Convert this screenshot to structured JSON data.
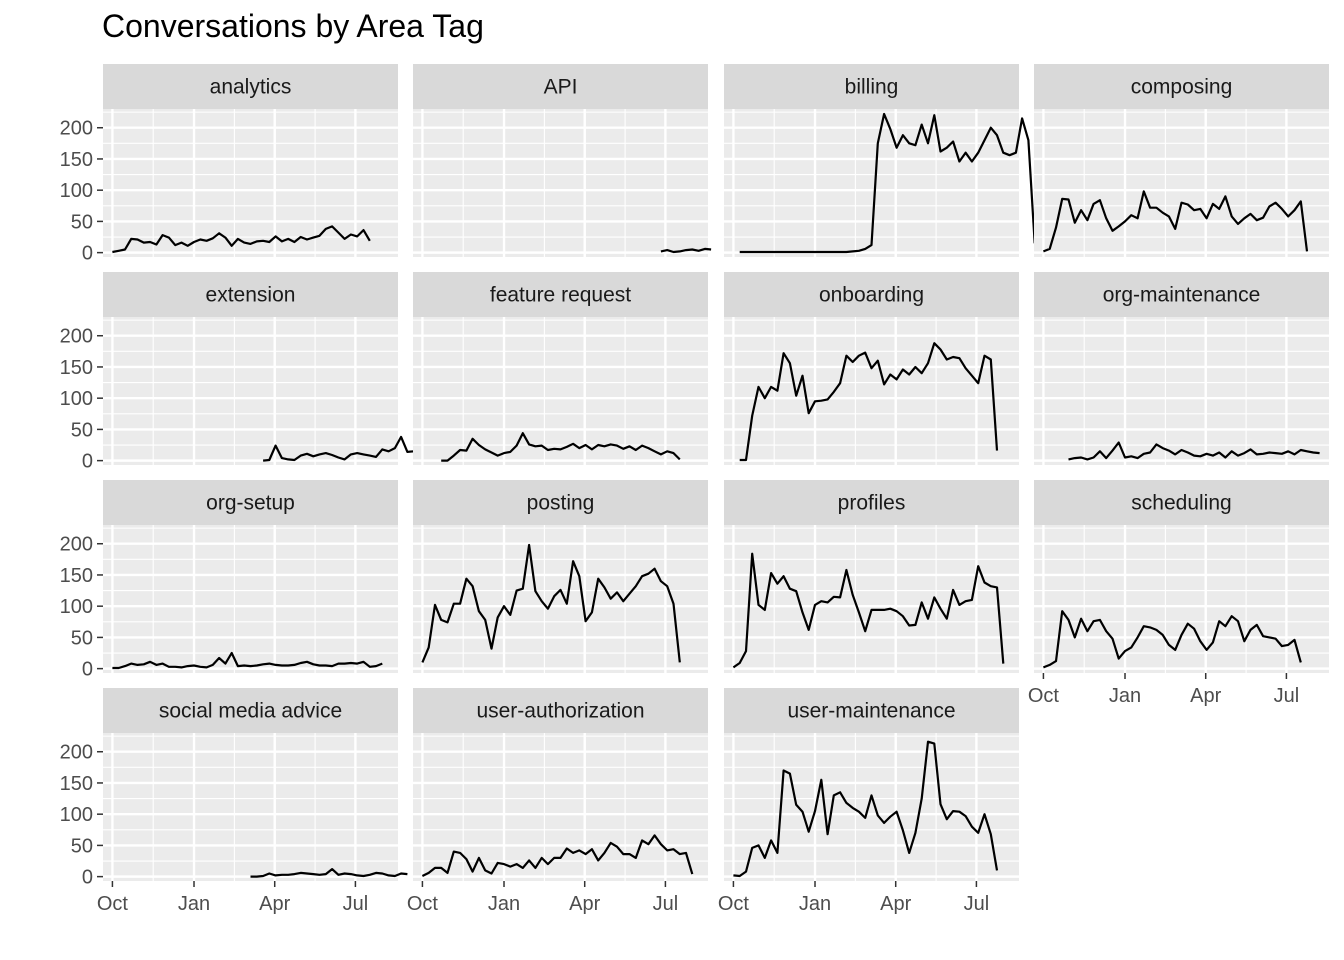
{
  "chart_data": {
    "type": "line",
    "title": "Conversations by Area Tag",
    "xlabel": "",
    "ylabel": "",
    "x_ticks": [
      "Oct",
      "Jan",
      "Apr",
      "Jul"
    ],
    "y_ticks": [
      0,
      50,
      100,
      150,
      200
    ],
    "ylim": [
      -7,
      230
    ],
    "xlim_weeks": [
      -1.5,
      45.5
    ],
    "x_unit": "weeks (weekly counts, Oct through Jul)",
    "grid": true,
    "facets": [
      {
        "name": "analytics",
        "x_start_week": 0,
        "values": [
          1,
          3,
          5,
          22,
          21,
          16,
          17,
          13,
          28,
          24,
          12,
          16,
          11,
          17,
          21,
          19,
          23,
          31,
          24,
          11,
          22,
          16,
          14,
          18,
          19,
          17,
          26,
          18,
          22,
          17,
          25,
          21,
          24,
          27,
          38,
          42,
          32,
          22,
          29,
          26,
          36,
          19
        ]
      },
      {
        "name": "API",
        "x_start_week": 38,
        "values": [
          2,
          4,
          1,
          2,
          4,
          5,
          3,
          6,
          5
        ]
      },
      {
        "name": "billing",
        "x_start_week": 1,
        "values": [
          1,
          1,
          1,
          1,
          1,
          1,
          1,
          1,
          1,
          1,
          1,
          1,
          1,
          1,
          1,
          1,
          1,
          1,
          2,
          3,
          6,
          12,
          175,
          222,
          198,
          168,
          188,
          175,
          172,
          205,
          175,
          220,
          162,
          168,
          178,
          146,
          160,
          146,
          160,
          180,
          200,
          188,
          160,
          156,
          160,
          215,
          180,
          15
        ]
      },
      {
        "name": "composing",
        "x_start_week": 0,
        "values": [
          2,
          6,
          40,
          86,
          85,
          48,
          68,
          52,
          78,
          84,
          55,
          35,
          42,
          50,
          60,
          55,
          98,
          72,
          72,
          64,
          58,
          38,
          80,
          77,
          68,
          70,
          55,
          78,
          70,
          90,
          58,
          46,
          55,
          62,
          52,
          56,
          74,
          80,
          70,
          58,
          68,
          82,
          2
        ]
      },
      {
        "name": "extension",
        "x_start_week": 24,
        "values": [
          0,
          1,
          24,
          4,
          2,
          1,
          8,
          11,
          7,
          10,
          12,
          9,
          5,
          2,
          10,
          12,
          10,
          8,
          6,
          18,
          15,
          20,
          38,
          14,
          15,
          4,
          12,
          12
        ]
      },
      {
        "name": "feature request",
        "x_start_week": 3,
        "values": [
          0,
          0,
          8,
          17,
          16,
          35,
          25,
          18,
          13,
          8,
          12,
          14,
          24,
          44,
          26,
          23,
          24,
          17,
          19,
          18,
          22,
          27,
          20,
          25,
          18,
          25,
          23,
          26,
          24,
          19,
          23,
          17,
          24,
          20,
          15,
          10,
          15,
          12,
          2
        ]
      },
      {
        "name": "onboarding",
        "x_start_week": 1,
        "values": [
          1,
          1,
          72,
          118,
          100,
          118,
          112,
          172,
          156,
          104,
          136,
          76,
          95,
          96,
          98,
          110,
          124,
          168,
          158,
          168,
          173,
          148,
          160,
          122,
          138,
          130,
          146,
          138,
          150,
          140,
          156,
          188,
          178,
          162,
          166,
          164,
          148,
          136,
          124,
          168,
          162,
          16
        ]
      },
      {
        "name": "org-maintenance",
        "x_start_week": 4,
        "values": [
          2,
          4,
          5,
          2,
          5,
          15,
          4,
          16,
          29,
          5,
          7,
          4,
          11,
          13,
          26,
          20,
          16,
          10,
          17,
          13,
          8,
          7,
          11,
          8,
          13,
          5,
          15,
          8,
          12,
          18,
          10,
          11,
          13,
          12,
          11,
          15,
          10,
          17,
          15,
          13,
          12
        ]
      },
      {
        "name": "org-setup",
        "x_start_week": 0,
        "values": [
          1,
          1,
          4,
          8,
          6,
          7,
          11,
          6,
          8,
          3,
          3,
          2,
          4,
          5,
          3,
          2,
          6,
          17,
          8,
          25,
          4,
          5,
          4,
          5,
          7,
          8,
          6,
          5,
          5,
          6,
          9,
          11,
          7,
          5,
          5,
          4,
          8,
          8,
          9,
          8,
          11,
          3,
          4,
          8
        ]
      },
      {
        "name": "posting",
        "x_start_week": 0,
        "values": [
          10,
          34,
          102,
          78,
          74,
          104,
          104,
          144,
          132,
          92,
          78,
          32,
          82,
          100,
          86,
          125,
          128,
          198,
          124,
          108,
          96,
          116,
          126,
          104,
          172,
          148,
          76,
          90,
          144,
          130,
          112,
          122,
          108,
          120,
          132,
          148,
          152,
          160,
          140,
          132,
          104,
          10
        ]
      },
      {
        "name": "profiles",
        "x_start_week": 0,
        "values": [
          2,
          9,
          28,
          184,
          102,
          94,
          153,
          136,
          148,
          128,
          124,
          90,
          62,
          102,
          108,
          106,
          115,
          114,
          158,
          118,
          90,
          60,
          94,
          94,
          94,
          96,
          92,
          84,
          69,
          70,
          106,
          80,
          114,
          96,
          80,
          126,
          102,
          108,
          110,
          164,
          138,
          132,
          130,
          8
        ]
      },
      {
        "name": "scheduling",
        "x_start_week": 0,
        "values": [
          2,
          6,
          12,
          92,
          78,
          50,
          80,
          60,
          76,
          78,
          60,
          48,
          16,
          28,
          34,
          50,
          68,
          66,
          62,
          54,
          38,
          30,
          54,
          72,
          64,
          44,
          30,
          42,
          76,
          68,
          84,
          76,
          44,
          62,
          70,
          52,
          50,
          48,
          36,
          38,
          46,
          10
        ]
      },
      {
        "name": "social media advice",
        "x_start_week": 22,
        "values": [
          0,
          0,
          1,
          5,
          2,
          3,
          3,
          4,
          6,
          5,
          4,
          3,
          4,
          12,
          3,
          5,
          4,
          2,
          1,
          3,
          6,
          5,
          2,
          1,
          5,
          4
        ]
      },
      {
        "name": "user-authorization",
        "x_start_week": 0,
        "values": [
          1,
          6,
          14,
          14,
          6,
          40,
          38,
          28,
          8,
          30,
          10,
          5,
          22,
          20,
          16,
          20,
          14,
          26,
          14,
          30,
          20,
          30,
          30,
          45,
          38,
          42,
          36,
          44,
          26,
          38,
          54,
          48,
          36,
          36,
          30,
          58,
          52,
          66,
          52,
          42,
          44,
          36,
          38,
          4
        ]
      },
      {
        "name": "user-maintenance",
        "x_start_week": 0,
        "values": [
          2,
          1,
          8,
          46,
          50,
          30,
          58,
          38,
          170,
          165,
          115,
          104,
          72,
          105,
          155,
          68,
          130,
          135,
          118,
          110,
          104,
          94,
          130,
          98,
          86,
          96,
          104,
          74,
          38,
          70,
          125,
          216,
          213,
          116,
          92,
          105,
          104,
          97,
          80,
          70,
          100,
          68,
          10
        ]
      }
    ]
  }
}
